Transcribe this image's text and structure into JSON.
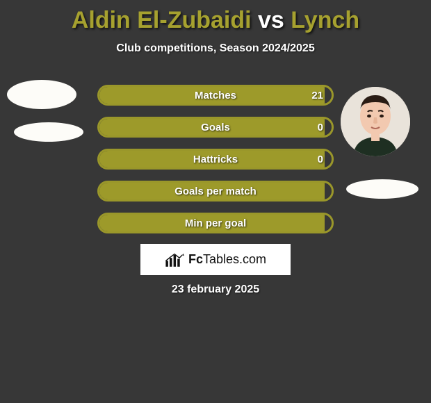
{
  "title": {
    "p1": "Aldin El-Zubaidi",
    "vs": " vs ",
    "p2": "Lynch"
  },
  "subtitle": "Club competitions, Season 2024/2025",
  "bars": [
    {
      "label": "Matches",
      "value": "21",
      "fill_pct": 97
    },
    {
      "label": "Goals",
      "value": "0",
      "fill_pct": 97
    },
    {
      "label": "Hattricks",
      "value": "0",
      "fill_pct": 97
    },
    {
      "label": "Goals per match",
      "value": "",
      "fill_pct": 97
    },
    {
      "label": "Min per goal",
      "value": "",
      "fill_pct": 97
    }
  ],
  "logo": {
    "brand_bold": "Fc",
    "brand_rest": "Tables",
    "brand_suffix": ".com"
  },
  "date": "23 february 2025",
  "colors": {
    "background": "#373737",
    "accent": "#9d9a2a",
    "accent_border": "#9a972a",
    "text": "#ffffff",
    "logo_bg": "#ffffff"
  }
}
